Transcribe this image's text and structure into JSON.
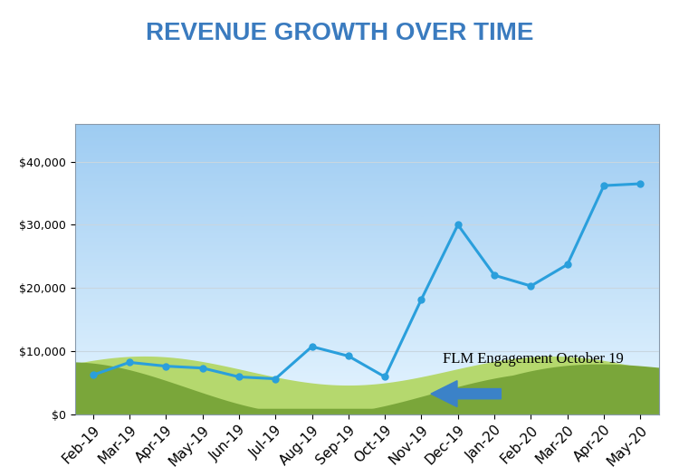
{
  "chart_data": {
    "type": "line",
    "title": "REVENUE GROWTH OVER TIME",
    "categories": [
      "Feb-19",
      "Mar-19",
      "Apr-19",
      "May-19",
      "Jun-19",
      "Jul-19",
      "Aug-19",
      "Sep-19",
      "Oct-19",
      "Nov-19",
      "Dec-19",
      "Jan-20",
      "Feb-20",
      "Mar-20",
      "Apr-20",
      "May-20"
    ],
    "values": [
      6200,
      8200,
      7600,
      7300,
      5900,
      5600,
      10700,
      9200,
      5900,
      18200,
      30000,
      22000,
      20300,
      23700,
      36200,
      36500
    ],
    "color": "#2a9fdc",
    "marker": "o",
    "line_style": "solid",
    "ylim": [
      0,
      46000
    ],
    "yticks": [
      {
        "value": 0,
        "label": "$0"
      },
      {
        "value": 10000,
        "label": "$10,000"
      },
      {
        "value": 20000,
        "label": "$20,000"
      },
      {
        "value": 30000,
        "label": "$30,000"
      },
      {
        "value": 40000,
        "label": "$40,000"
      }
    ],
    "grid": true,
    "annotation": "FLM Engagement October 19"
  }
}
